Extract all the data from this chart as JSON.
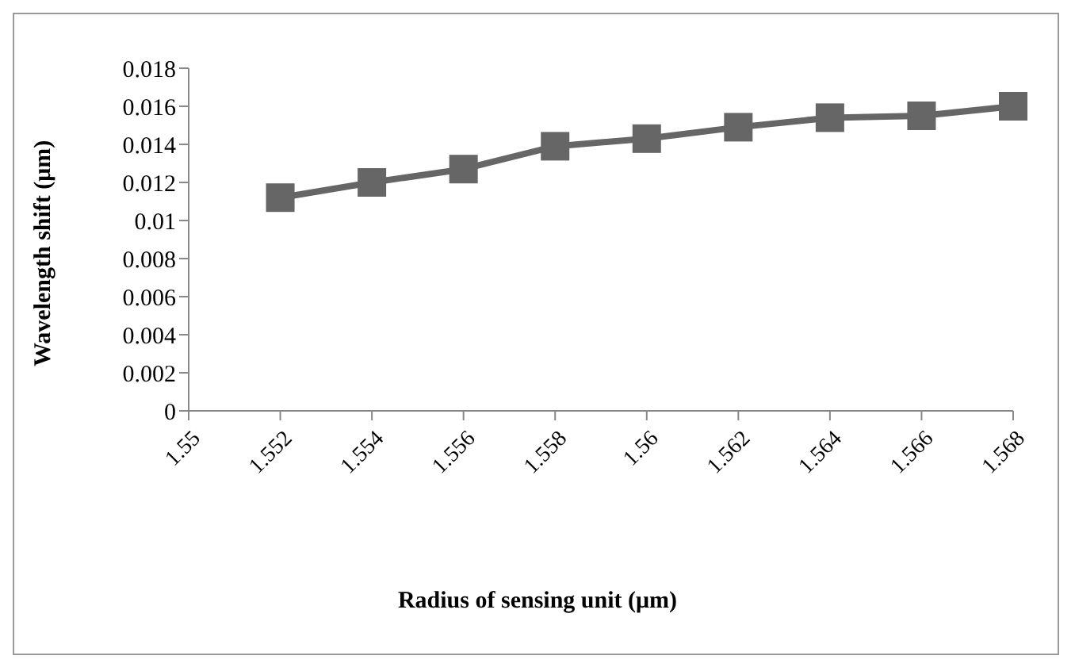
{
  "chart_data": {
    "type": "line",
    "xlabel": "Radius of sensing unit (μm)",
    "ylabel": "Wavelength shift (μm)",
    "categories": [
      "1.55",
      "1.552",
      "1.554",
      "1.556",
      "1.558",
      "1.56",
      "1.562",
      "1.564",
      "1.566",
      "1.568"
    ],
    "series": [
      {
        "color": "#666666",
        "values": [
          null,
          0.0112,
          0.012,
          0.0127,
          0.0139,
          0.0143,
          0.0149,
          0.0154,
          0.0155,
          0.016
        ]
      }
    ],
    "ylim": [
      0,
      0.018
    ],
    "yticks": [
      0,
      0.002,
      0.004,
      0.006,
      0.008,
      0.01,
      0.012,
      0.014,
      0.016,
      0.018
    ],
    "grid": false,
    "legend": false,
    "marker": "square",
    "line_style": "solid"
  }
}
